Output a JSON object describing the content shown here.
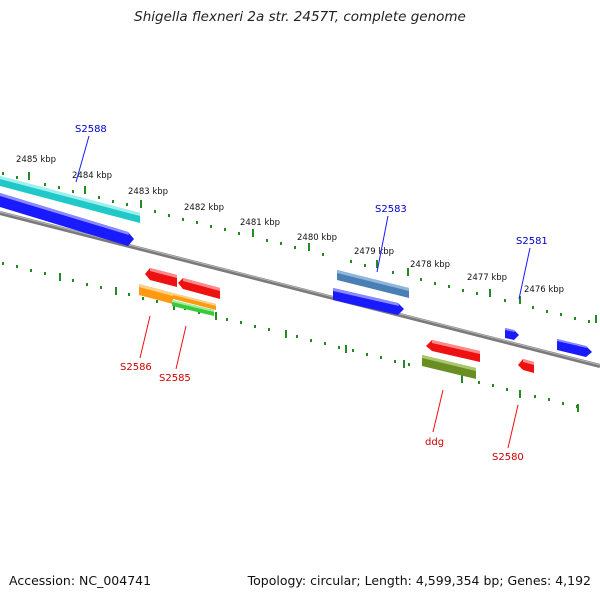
{
  "title": "Shigella flexneri 2a str. 2457T, complete genome",
  "footer": {
    "accession": "Accession: NC_004741",
    "summary": "Topology: circular; Length: 4,599,354 bp; Genes: 4,192"
  },
  "ticks": [
    "2485 kbp",
    "2484 kbp",
    "2483 kbp",
    "2482 kbp",
    "2481 kbp",
    "2480 kbp",
    "2479 kbp",
    "2478 kbp",
    "2477 kbp",
    "2476 kbp"
  ],
  "gene_labels": {
    "s2588": "S2588",
    "s2583": "S2583",
    "s2581": "S2581",
    "s2586": "S2586",
    "s2585": "S2585",
    "ddg": "ddg",
    "s2580": "S2580"
  },
  "colors": {
    "backbone": "#808080",
    "tick": "#228b22",
    "forward_label": "#0000cc",
    "reverse_label": "#cc0000",
    "cyan": "#20c8c8",
    "blue": "#1a1aff",
    "steelblue": "#4a7fb5",
    "red": "#ee1111",
    "orange": "#ff9a10",
    "green": "#3cc83c",
    "olive": "#6b8e23"
  }
}
